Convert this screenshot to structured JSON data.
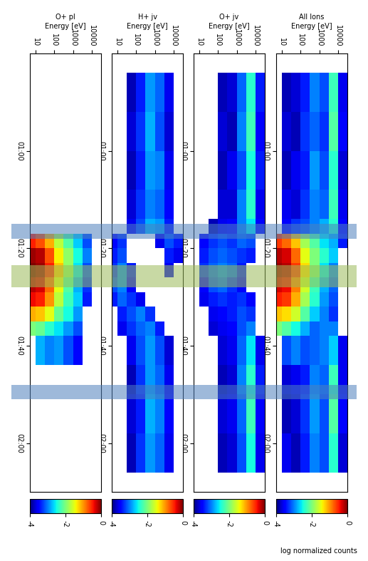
{
  "chart_data": {
    "type": "heatmap",
    "xlabel": "Energy [eV]",
    "log": "x",
    "xlim": [
      5,
      30000
    ],
    "xticks": [
      10,
      100,
      1000,
      10000
    ],
    "ylim": [
      40,
      130
    ],
    "yticks": [
      {
        "value": 60,
        "label": "01:00"
      },
      {
        "value": 80,
        "label": "01:20"
      },
      {
        "value": 100,
        "label": "01:40"
      },
      {
        "value": 120,
        "label": "02:00"
      }
    ],
    "energy_edges": [
      5,
      10,
      30,
      100,
      300,
      1000,
      3000,
      10000,
      30000
    ],
    "time_edges": [
      44,
      52,
      60,
      68,
      74,
      77,
      80,
      83,
      86,
      89,
      92,
      95,
      98,
      104,
      110,
      118,
      126
    ],
    "colorbar": {
      "label": "log normalized counts",
      "range": [
        -4,
        0
      ],
      "ticks": [
        -4,
        -2,
        0
      ]
    },
    "bands": [
      {
        "start": 75,
        "end": 78,
        "color": "#4f81bd"
      },
      {
        "start": 83.5,
        "end": 88,
        "color": "#9bbb59"
      },
      {
        "start": 108,
        "end": 111,
        "color": "#4f81bd"
      }
    ],
    "panels": [
      {
        "title": "All Ions",
        "cells": [
          [
            null,
            -3.8,
            -3.7,
            -3.4,
            -3.0,
            -3.2,
            -2.3,
            -3.6
          ],
          [
            null,
            -3.7,
            -3.8,
            -3.3,
            -3.1,
            -3.3,
            -2.2,
            -3.5
          ],
          [
            null,
            -3.8,
            -3.6,
            -3.4,
            -2.9,
            -3.2,
            -2.4,
            -3.7
          ],
          [
            null,
            -3.6,
            -3.7,
            -3.3,
            -3.0,
            -3.1,
            -2.3,
            -3.6
          ],
          [
            null,
            -3.5,
            -3.3,
            -3.2,
            -3.0,
            -2.8,
            -2.4,
            -3.5
          ],
          [
            -0.6,
            -0.8,
            -1.2,
            -1.8,
            -2.2,
            -2.6,
            -2.8,
            -3.4
          ],
          [
            -0.2,
            -0.3,
            -0.8,
            -1.5,
            -2.0,
            -2.4,
            -2.7,
            null
          ],
          [
            -0.1,
            -0.2,
            -0.6,
            -1.3,
            -2.0,
            -2.6,
            -3.0,
            null
          ],
          [
            -0.3,
            -0.4,
            -0.9,
            -1.6,
            -2.3,
            -2.8,
            -3.1,
            null
          ],
          [
            -0.5,
            -0.6,
            -1.1,
            -1.8,
            -2.4,
            -2.9,
            -3.2,
            null
          ],
          [
            -1.2,
            -1.3,
            -1.6,
            -2.2,
            -2.7,
            -3.0,
            -3.3,
            null
          ],
          [
            -2.0,
            -2.2,
            -2.5,
            -2.8,
            -3.1,
            -3.0,
            -3.0,
            null
          ],
          [
            null,
            -3.2,
            -3.0,
            -3.2,
            -3.1,
            -3.0,
            -2.7,
            -3.6
          ],
          [
            null,
            -3.7,
            -3.6,
            -3.4,
            -3.0,
            -3.1,
            -2.3,
            -3.6
          ],
          [
            null,
            -3.8,
            -3.7,
            -3.3,
            -2.9,
            -3.2,
            -2.2,
            -3.5
          ],
          [
            null,
            -3.6,
            -3.8,
            -3.4,
            -3.0,
            -3.2,
            -2.4,
            -3.7
          ]
        ]
      },
      {
        "title": "O+ jv",
        "cells": [
          [
            null,
            null,
            null,
            -3.8,
            -3.7,
            -3.1,
            -2.4,
            -3.4
          ],
          [
            null,
            null,
            null,
            -3.7,
            -3.8,
            -3.0,
            -2.3,
            -3.5
          ],
          [
            null,
            null,
            null,
            -3.8,
            -3.6,
            -3.2,
            -2.5,
            -3.4
          ],
          [
            null,
            null,
            null,
            -3.7,
            -3.7,
            -3.0,
            -2.4,
            -3.6
          ],
          [
            null,
            null,
            -3.8,
            -3.6,
            -3.5,
            -3.0,
            -2.6,
            -3.5
          ],
          [
            null,
            -3.5,
            -3.3,
            -3.2,
            -3.3,
            -3.1,
            -3.2,
            null
          ],
          [
            null,
            -3.4,
            -3.2,
            -3.1,
            -3.2,
            -3.3,
            -3.4,
            null
          ],
          [
            null,
            -3.3,
            -3.1,
            -3.0,
            -3.1,
            -3.4,
            null,
            null
          ],
          [
            null,
            -3.5,
            -3.2,
            -3.1,
            -3.3,
            -3.5,
            null,
            null
          ],
          [
            null,
            -3.6,
            -3.4,
            -3.3,
            -3.4,
            -3.3,
            -3.5,
            null
          ],
          [
            null,
            null,
            -3.6,
            -3.5,
            -3.4,
            -3.2,
            -3.3,
            null
          ],
          [
            null,
            null,
            -3.7,
            -3.6,
            -3.5,
            -3.2,
            -3.0,
            null
          ],
          [
            null,
            null,
            null,
            -3.7,
            -3.6,
            -3.1,
            -2.6,
            -3.6
          ],
          [
            null,
            null,
            null,
            -3.8,
            -3.7,
            -3.0,
            -2.4,
            -3.4
          ],
          [
            null,
            null,
            null,
            -3.7,
            -3.6,
            -3.1,
            -2.3,
            -3.5
          ],
          [
            null,
            null,
            null,
            -3.8,
            -3.7,
            -3.2,
            -2.5,
            -3.6
          ]
        ]
      },
      {
        "title": "H+ jv",
        "cells": [
          [
            null,
            null,
            -3.8,
            -3.4,
            -2.9,
            -3.1,
            -3.6,
            null
          ],
          [
            null,
            null,
            -3.7,
            -3.3,
            -2.8,
            -3.2,
            -3.7,
            null
          ],
          [
            null,
            null,
            -3.8,
            -3.4,
            -2.9,
            -3.0,
            -3.6,
            null
          ],
          [
            null,
            null,
            -3.7,
            -3.3,
            -3.0,
            -3.1,
            -3.5,
            null
          ],
          [
            null,
            null,
            -3.6,
            -3.2,
            -2.8,
            -2.9,
            -3.4,
            null
          ],
          [
            -3.5,
            -3.3,
            null,
            null,
            null,
            -3.6,
            -3.2,
            -3.4
          ],
          [
            -3.4,
            -3.2,
            null,
            null,
            null,
            null,
            -3.4,
            -3.6
          ],
          [
            -3.3,
            -3.0,
            -3.4,
            null,
            null,
            null,
            -3.6,
            null
          ],
          [
            -3.2,
            -3.0,
            -3.5,
            null,
            null,
            null,
            null,
            null
          ],
          [
            -3.4,
            -3.1,
            -3.3,
            -3.6,
            null,
            null,
            null,
            null
          ],
          [
            null,
            -3.4,
            -3.2,
            -3.0,
            -3.3,
            null,
            null,
            null
          ],
          [
            null,
            -3.6,
            -3.3,
            -3.1,
            -3.0,
            -3.4,
            null,
            null
          ],
          [
            null,
            null,
            -3.6,
            -3.2,
            -2.9,
            -3.2,
            -3.7,
            null
          ],
          [
            null,
            null,
            -3.8,
            -3.3,
            -2.9,
            -3.1,
            -3.6,
            null
          ],
          [
            null,
            null,
            -3.7,
            -3.4,
            -2.8,
            -3.0,
            -3.5,
            null
          ],
          [
            null,
            null,
            -3.8,
            -3.3,
            -2.9,
            -3.1,
            -3.6,
            null
          ]
        ]
      },
      {
        "title": "O+ pl",
        "cells": [
          [
            null,
            null,
            null,
            null,
            null,
            null,
            null,
            null
          ],
          [
            null,
            null,
            null,
            null,
            null,
            null,
            null,
            null
          ],
          [
            null,
            null,
            null,
            null,
            null,
            null,
            null,
            null
          ],
          [
            null,
            null,
            null,
            null,
            null,
            null,
            null,
            null
          ],
          [
            null,
            null,
            null,
            null,
            null,
            null,
            null,
            null
          ],
          [
            -0.5,
            -0.7,
            -1.1,
            -1.7,
            -2.2,
            -2.7,
            -3.2,
            null
          ],
          [
            -0.1,
            -0.2,
            -0.7,
            -1.4,
            -1.9,
            -2.5,
            -3.0,
            null
          ],
          [
            0.0,
            -0.1,
            -0.5,
            -1.2,
            -1.9,
            -2.6,
            -3.2,
            null
          ],
          [
            -0.2,
            -0.3,
            -0.8,
            -1.5,
            -2.2,
            -2.8,
            -3.3,
            null
          ],
          [
            -0.4,
            -0.5,
            -1.0,
            -1.7,
            -2.3,
            -2.7,
            -3.4,
            null
          ],
          [
            -1.1,
            -1.2,
            -1.5,
            -2.1,
            -2.5,
            -2.9,
            null,
            null
          ],
          [
            -2.0,
            -2.1,
            -2.4,
            -2.6,
            -2.9,
            -3.2,
            null,
            null
          ],
          [
            null,
            -2.8,
            -3.0,
            -2.9,
            -3.2,
            -3.5,
            null,
            null
          ],
          [
            null,
            null,
            null,
            null,
            null,
            null,
            null,
            null
          ],
          [
            null,
            null,
            null,
            null,
            null,
            null,
            null,
            null
          ],
          [
            null,
            null,
            null,
            null,
            null,
            null,
            null,
            null
          ]
        ]
      }
    ]
  }
}
